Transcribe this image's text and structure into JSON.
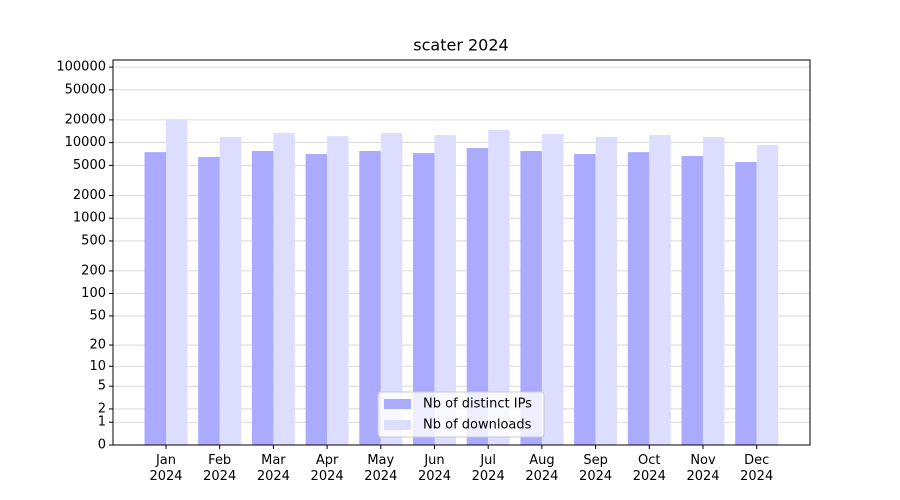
{
  "chart_data": {
    "type": "bar",
    "title": "scater 2024",
    "categories": [
      "Jan 2024",
      "Feb 2024",
      "Mar 2024",
      "Apr 2024",
      "May 2024",
      "Jun 2024",
      "Jul 2024",
      "Aug 2024",
      "Sep 2024",
      "Oct 2024",
      "Nov 2024",
      "Dec 2024"
    ],
    "series": [
      {
        "name": "Nb of distinct IPs",
        "color": "#aaaaff",
        "values": [
          7500,
          6450,
          7750,
          7060,
          7750,
          7280,
          8480,
          7750,
          7060,
          7500,
          6650,
          5540
        ]
      },
      {
        "name": "Nb of downloads",
        "color": "#ddddff",
        "values": [
          20500,
          11900,
          13400,
          12200,
          13400,
          12600,
          14700,
          13000,
          11900,
          12600,
          11900,
          9290
        ]
      }
    ],
    "yscale": "log1p",
    "ylim": [
      0,
      124000
    ],
    "yticks": [
      0,
      1,
      2,
      5,
      10,
      20,
      50,
      100,
      200,
      500,
      1000,
      2000,
      5000,
      10000,
      20000,
      50000,
      100000
    ],
    "grid": true,
    "legend": "lower center"
  }
}
